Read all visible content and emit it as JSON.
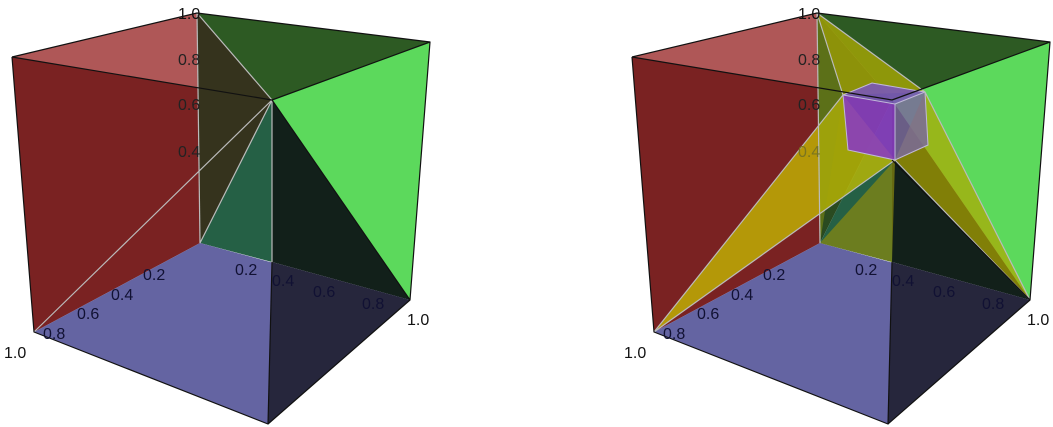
{
  "colors": {
    "red_face": "#a02020",
    "green_face": "#22c022",
    "blue_face": "#6a6ab0",
    "yellow_region": "#c8c000",
    "purple_cube": "#8a3cc0",
    "dark_edge": "#111111",
    "tick_dark": "#111133",
    "tick_light": "#222222"
  },
  "panels": [
    {
      "name": "left",
      "corner_labels": {
        "top": "1.0",
        "right": "1.0",
        "left": "1.0"
      },
      "z_ticks": [
        "0.8",
        "0.6",
        "0.4"
      ],
      "x_ticks": [
        "0.2",
        "0.4",
        "0.6",
        "0.8"
      ],
      "y_ticks": [
        "0.2",
        "0.4",
        "0.6",
        "0.8"
      ],
      "has_inner_cube": false
    },
    {
      "name": "right",
      "corner_labels": {
        "top": "1.0",
        "right": "1.0",
        "left": "1.0"
      },
      "z_ticks": [
        "0.8",
        "0.6",
        "0.4"
      ],
      "x_ticks": [
        "0.2",
        "0.4",
        "0.6",
        "0.8"
      ],
      "y_ticks": [
        "0.2",
        "0.4",
        "0.6",
        "0.8"
      ],
      "has_inner_cube": true
    }
  ]
}
